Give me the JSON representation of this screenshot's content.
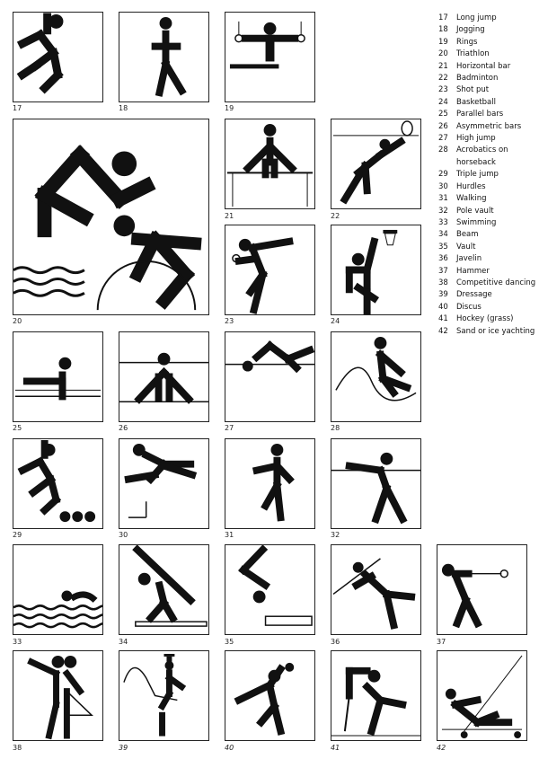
{
  "legend": [
    {
      "num": "17",
      "label": "Long jump"
    },
    {
      "num": "18",
      "label": "Jogging"
    },
    {
      "num": "19",
      "label": "Rings"
    },
    {
      "num": "20",
      "label": "Triathlon"
    },
    {
      "num": "21",
      "label": "Horizontal bar"
    },
    {
      "num": "22",
      "label": "Badminton"
    },
    {
      "num": "23",
      "label": "Shot put"
    },
    {
      "num": "24",
      "label": "Basketball"
    },
    {
      "num": "25",
      "label": "Parallel bars"
    },
    {
      "num": "26",
      "label": "Asymmetric bars"
    },
    {
      "num": "27",
      "label": "High jump"
    },
    {
      "num": "28",
      "label": "Acrobatics on horseback"
    },
    {
      "num": "29",
      "label": "Triple jump"
    },
    {
      "num": "30",
      "label": "Hurdles"
    },
    {
      "num": "31",
      "label": "Walking"
    },
    {
      "num": "32",
      "label": "Pole vault"
    },
    {
      "num": "33",
      "label": "Swimming"
    },
    {
      "num": "34",
      "label": "Beam"
    },
    {
      "num": "35",
      "label": "Vault"
    },
    {
      "num": "36",
      "label": "Javelin"
    },
    {
      "num": "37",
      "label": "Hammer"
    },
    {
      "num": "38",
      "label": "Competitive dancing"
    },
    {
      "num": "39",
      "label": "Dressage"
    },
    {
      "num": "40",
      "label": "Discus"
    },
    {
      "num": "41",
      "label": "Hockey (grass)"
    },
    {
      "num": "42",
      "label": "Sand or ice yachting"
    }
  ],
  "pictogram_numbers": {
    "p17": "17",
    "p18": "18",
    "p19": "19",
    "p20": "20",
    "p21": "21",
    "p22": "22",
    "p23": "23",
    "p24": "24",
    "p25": "25",
    "p26": "26",
    "p27": "27",
    "p28": "28",
    "p29": "29",
    "p30": "30",
    "p31": "31",
    "p32": "32",
    "p33": "33",
    "p34": "34",
    "p35": "35",
    "p36": "36",
    "p37": "37",
    "p38": "38",
    "p39": "39",
    "p40": "40",
    "p41": "41",
    "p42": "42"
  },
  "colors": {
    "ink": "#111111",
    "paper": "#ffffff"
  }
}
